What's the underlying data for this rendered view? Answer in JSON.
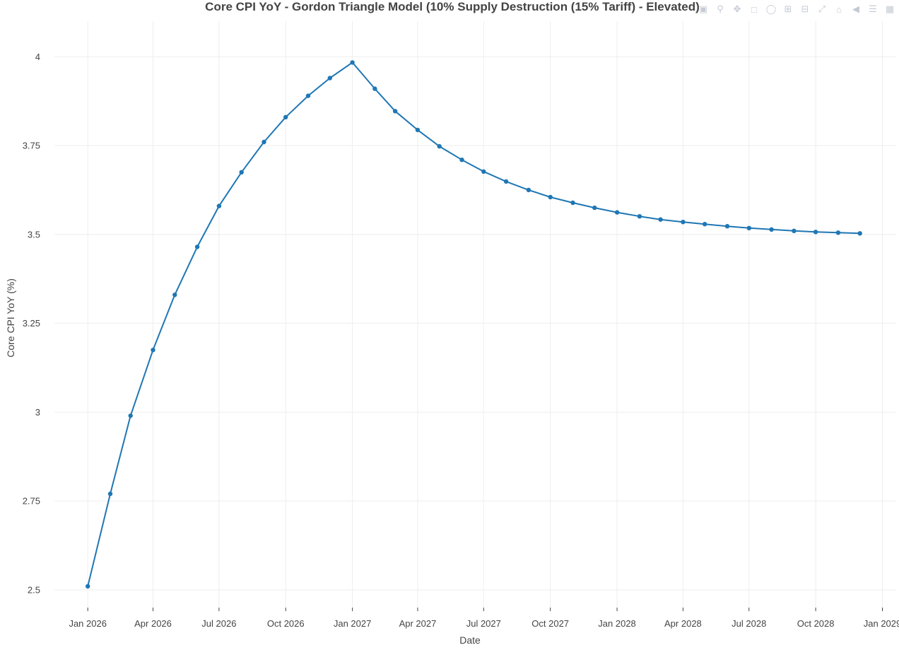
{
  "chart_data": {
    "type": "line",
    "title": "Core CPI YoY - Gordon Triangle Model (10% Supply Destruction (15% Tariff) - Elevated)",
    "xlabel": "Date",
    "ylabel": "Core CPI YoY (%)",
    "xlim": [
      "2025-11-16",
      "2029-01-20"
    ],
    "ylim": [
      2.45,
      4.1
    ],
    "grid": true,
    "legend": "none",
    "line_color": "#1f77b4",
    "x_ticks": [
      {
        "value": "2026-01-01",
        "label": "Jan 2026"
      },
      {
        "value": "2026-04-01",
        "label": "Apr 2026"
      },
      {
        "value": "2026-07-01",
        "label": "Jul 2026"
      },
      {
        "value": "2026-10-01",
        "label": "Oct 2026"
      },
      {
        "value": "2027-01-01",
        "label": "Jan 2027"
      },
      {
        "value": "2027-04-01",
        "label": "Apr 2027"
      },
      {
        "value": "2027-07-01",
        "label": "Jul 2027"
      },
      {
        "value": "2027-10-01",
        "label": "Oct 2027"
      },
      {
        "value": "2028-01-01",
        "label": "Jan 2028"
      },
      {
        "value": "2028-04-01",
        "label": "Apr 2028"
      },
      {
        "value": "2028-07-01",
        "label": "Jul 2028"
      },
      {
        "value": "2028-10-01",
        "label": "Oct 2028"
      },
      {
        "value": "2029-01-01",
        "label": "Jan 2029"
      }
    ],
    "y_ticks": [
      {
        "value": 2.5,
        "label": "2.5"
      },
      {
        "value": 2.75,
        "label": "2.75"
      },
      {
        "value": 3,
        "label": "3"
      },
      {
        "value": 3.25,
        "label": "3.25"
      },
      {
        "value": 3.5,
        "label": "3.5"
      },
      {
        "value": 3.75,
        "label": "3.75"
      },
      {
        "value": 4,
        "label": "4"
      }
    ],
    "series": [
      {
        "x": [
          "2026-01-01",
          "2026-02-01",
          "2026-03-01",
          "2026-04-01",
          "2026-05-01",
          "2026-06-01",
          "2026-07-01",
          "2026-08-01",
          "2026-09-01",
          "2026-10-01",
          "2026-11-01",
          "2026-12-01",
          "2027-01-01",
          "2027-02-01",
          "2027-03-01",
          "2027-04-01",
          "2027-05-01",
          "2027-06-01",
          "2027-07-01",
          "2027-08-01",
          "2027-09-01",
          "2027-10-01",
          "2027-11-01",
          "2027-12-01",
          "2028-01-01",
          "2028-02-01",
          "2028-03-01",
          "2028-04-01",
          "2028-05-01",
          "2028-06-01",
          "2028-07-01",
          "2028-08-01",
          "2028-09-01",
          "2028-10-01",
          "2028-11-01",
          "2028-12-01"
        ],
        "y": [
          2.51,
          2.77,
          2.99,
          3.175,
          3.33,
          3.465,
          3.58,
          3.675,
          3.76,
          3.83,
          3.89,
          3.94,
          3.984,
          3.91,
          3.847,
          3.794,
          3.748,
          3.71,
          3.677,
          3.649,
          3.625,
          3.605,
          3.589,
          3.575,
          3.562,
          3.551,
          3.542,
          3.535,
          3.529,
          3.523,
          3.518,
          3.514,
          3.51,
          3.507,
          3.505,
          3.503
        ]
      }
    ]
  },
  "modebar": {
    "icons": [
      "camera-icon",
      "zoom-icon",
      "pan-icon",
      "box-select-icon",
      "lasso-icon",
      "zoom-in-icon",
      "zoom-out-icon",
      "autoscale-icon",
      "home-icon",
      "spike-icon",
      "compare-icon",
      "plotly-logo-icon"
    ]
  }
}
